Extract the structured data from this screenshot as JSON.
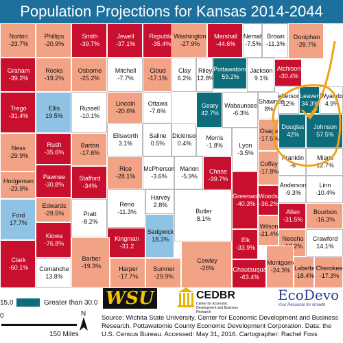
{
  "title": "Population Projections for Kansas 2014-2044",
  "categories": {
    "red": "#c8102e",
    "salmon": "#f2a285",
    "white": "#ffffff",
    "lightblue": "#8fc3e3",
    "teal": "#0e6d7b"
  },
  "counties": [
    {
      "name": "Norton",
      "value": "-23.7%",
      "class": "salmon"
    },
    {
      "name": "Phillips",
      "value": "-20.9%",
      "class": "salmon"
    },
    {
      "name": "Smith",
      "value": "-39.7%",
      "class": "red"
    },
    {
      "name": "Jewell",
      "value": "-37.1%",
      "class": "red"
    },
    {
      "name": "Republic",
      "value": "-35.4%",
      "class": "red"
    },
    {
      "name": "Washington",
      "value": "-27.9%",
      "class": "salmon"
    },
    {
      "name": "Marshall",
      "value": "-44.6%",
      "class": "red"
    },
    {
      "name": "Nemaha",
      "value": "-7.5%",
      "class": "white"
    },
    {
      "name": "Brown",
      "value": "-11.3%",
      "class": "white"
    },
    {
      "name": "Doniphan",
      "value": "-28.7%",
      "class": "salmon"
    },
    {
      "name": "Graham",
      "value": "-39.2%",
      "class": "red"
    },
    {
      "name": "Rooks",
      "value": "-19.2%",
      "class": "salmon"
    },
    {
      "name": "Osborne",
      "value": "-25.2%",
      "class": "salmon"
    },
    {
      "name": "Mitchell",
      "value": "-7.7%",
      "class": "white"
    },
    {
      "name": "Cloud",
      "value": "-17.1%",
      "class": "salmon"
    },
    {
      "name": "Clay",
      "value": "6.2%",
      "class": "white"
    },
    {
      "name": "Riley",
      "value": "12.8%",
      "class": "white"
    },
    {
      "name": "Pottawatomie",
      "value": "59.2%",
      "class": "teal"
    },
    {
      "name": "Jackson",
      "value": "9.1%",
      "class": "white"
    },
    {
      "name": "Atchison",
      "value": "-30.4%",
      "class": "red"
    },
    {
      "name": "Jefferson",
      "value": "-12%",
      "class": "white"
    },
    {
      "name": "Leavenworth",
      "value": "34.3%",
      "class": "teal"
    },
    {
      "name": "Wyandotte",
      "value": "4.9%",
      "class": "white"
    },
    {
      "name": "Trego",
      "value": "-31.4%",
      "class": "red"
    },
    {
      "name": "Ellis",
      "value": "19.5%",
      "class": "lblue"
    },
    {
      "name": "Russell",
      "value": "-10.1%",
      "class": "white"
    },
    {
      "name": "Lincoln",
      "value": "-20.6%",
      "class": "salmon"
    },
    {
      "name": "Ottawa",
      "value": "-7.6%",
      "class": "white"
    },
    {
      "name": "Geary",
      "value": "42.7%",
      "class": "teal"
    },
    {
      "name": "Wabaunsee",
      "value": "-6.3%",
      "class": "white"
    },
    {
      "name": "Shawnee",
      "value": "8%",
      "class": "white"
    },
    {
      "name": "Douglas",
      "value": "42%",
      "class": "teal"
    },
    {
      "name": "Johnson",
      "value": "57.5%",
      "class": "teal"
    },
    {
      "name": "Ellsworth",
      "value": "3.1%",
      "class": "white"
    },
    {
      "name": "Saline",
      "value": "0.5%",
      "class": "white"
    },
    {
      "name": "Dickinson",
      "value": "0.4%",
      "class": "white"
    },
    {
      "name": "Morris",
      "value": "-1.8%",
      "class": "white"
    },
    {
      "name": "Lyon",
      "value": "-3.5%",
      "class": "white"
    },
    {
      "name": "Osage",
      "value": "-17.5%",
      "class": "salmon"
    },
    {
      "name": "Franklin",
      "value": "-6",
      "class": "white"
    },
    {
      "name": "Miami",
      "value": "12.7%",
      "class": "white"
    },
    {
      "name": "Ness",
      "value": "-29.9%",
      "class": "salmon"
    },
    {
      "name": "Rush",
      "value": "-35.6%",
      "class": "red"
    },
    {
      "name": "Barton",
      "value": "-17.6%",
      "class": "salmon"
    },
    {
      "name": "Rice",
      "value": "-28.1%",
      "class": "salmon"
    },
    {
      "name": "McPherson",
      "value": "-3.6%",
      "class": "white"
    },
    {
      "name": "Marion",
      "value": "-5.9%",
      "class": "white"
    },
    {
      "name": "Chase",
      "value": "-39.7%",
      "class": "red"
    },
    {
      "name": "Coffey",
      "value": "-17.8%",
      "class": "salmon"
    },
    {
      "name": "Anderson",
      "value": "-9.3%",
      "class": "white"
    },
    {
      "name": "Linn",
      "value": "-10.4%",
      "class": "white"
    },
    {
      "name": "Hodgeman",
      "value": "-23.9%",
      "class": "salmon"
    },
    {
      "name": "Pawnee",
      "value": "-30.8%",
      "class": "red"
    },
    {
      "name": "Stafford",
      "value": "-34%",
      "class": "red"
    },
    {
      "name": "Reno",
      "value": "-11.3%",
      "class": "white"
    },
    {
      "name": "Harvey",
      "value": "2.8%",
      "class": "white"
    },
    {
      "name": "Butler",
      "value": "8.1%",
      "class": "white"
    },
    {
      "name": "Greenwood",
      "value": "-40.3%",
      "class": "red"
    },
    {
      "name": "Woodson",
      "value": "-36.2%",
      "class": "red"
    },
    {
      "name": "Allen",
      "value": "-31.5%",
      "class": "red"
    },
    {
      "name": "Bourbon",
      "value": "-16.3%",
      "class": "salmon"
    },
    {
      "name": "Ford",
      "value": "17.7%",
      "class": "lblue"
    },
    {
      "name": "Edwards",
      "value": "-29.5%",
      "class": "salmon"
    },
    {
      "name": "Kiowa",
      "value": "-76.8%",
      "class": "red"
    },
    {
      "name": "Pratt",
      "value": "-8.2%",
      "class": "white"
    },
    {
      "name": "Kingman",
      "value": "-31.2",
      "class": "red"
    },
    {
      "name": "Sedgwick",
      "value": "18.3%",
      "class": "lblue"
    },
    {
      "name": "Wilson",
      "value": "-21.4%",
      "class": "salmon"
    },
    {
      "name": "Neosho",
      "value": "-18.2%",
      "class": "salmon"
    },
    {
      "name": "Crawford",
      "value": "14.1%",
      "class": "white"
    },
    {
      "name": "Elk",
      "value": "-33.9%",
      "class": "red"
    },
    {
      "name": "Clark",
      "value": "-60.1%",
      "class": "red"
    },
    {
      "name": "Comanche",
      "value": "13.8%",
      "class": "white"
    },
    {
      "name": "Barber",
      "value": "-19.3%",
      "class": "salmon"
    },
    {
      "name": "Harper",
      "value": "-17.7%",
      "class": "salmon"
    },
    {
      "name": "Sumner",
      "value": "-29.9%",
      "class": "salmon"
    },
    {
      "name": "Cowley",
      "value": "-26%",
      "class": "salmon"
    },
    {
      "name": "Chautauqua",
      "value": "-63.4%",
      "class": "red"
    },
    {
      "name": "Montgomery",
      "value": "-24.3%",
      "class": "salmon"
    },
    {
      "name": "Labette",
      "value": "-18.4%",
      "class": "salmon"
    },
    {
      "name": "Cherokee",
      "value": "-17.3%",
      "class": "salmon"
    }
  ],
  "legend": {
    "left_value": "15.0",
    "teal_label": "Greater than 30.0",
    "scale_zero": "0",
    "scale_label": "150 Miles",
    "north": "N"
  },
  "logos": {
    "wsu": "WSU",
    "cedbr": "CEDBR",
    "cedbr_sub": "Center for Economic Development and Business Research",
    "ecodevo": "EcoDevo",
    "ecodevo_sub": "Your Resource for Growth"
  },
  "source": "Source: Wichita State University, Center for Economic Development and Business Research. Pottawatomie County Economic Development Corporation. Data: the U.S. Census Bureau. Accessed: May 31, 2016. Cartographer: Rachel Foss"
}
